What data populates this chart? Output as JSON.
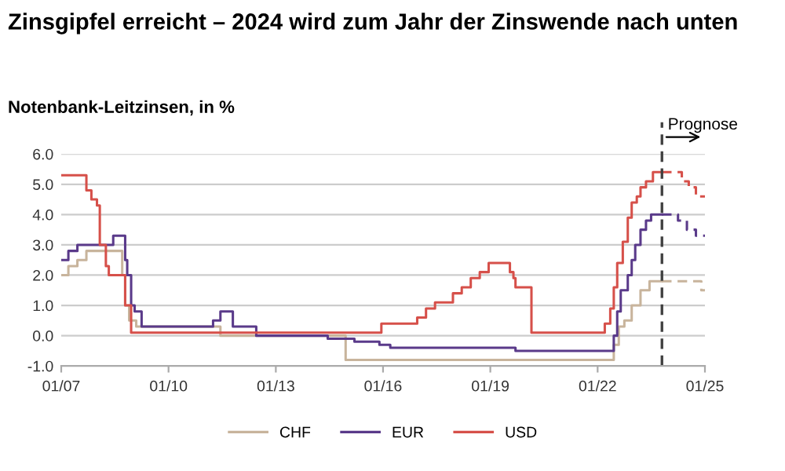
{
  "chart_data": {
    "type": "step",
    "title": "Zinsgipfel erreicht – 2024 wird zum Jahr der Zinswende nach unten",
    "subtitle": "Notenbank-Leitzinsen, in %",
    "series": [
      {
        "name": "CHF",
        "color": "#c8b49c",
        "x": [
          "2007-01-01",
          "2007-03-15",
          "2007-06-15",
          "2007-09-15",
          "2008-09-15",
          "2008-10-15",
          "2008-11-25",
          "2009-02-05",
          "2011-06-15",
          "2014-12-15",
          "2022-06-15",
          "2022-08-05",
          "2022-10-01",
          "2022-12-15",
          "2023-03-15",
          "2023-06-15",
          "2023-10-20"
        ],
        "values": [
          2.0,
          2.3,
          2.5,
          2.8,
          2.0,
          1.0,
          0.5,
          0.3,
          0.0,
          -0.8,
          -0.3,
          0.3,
          0.5,
          1.0,
          1.5,
          1.8,
          1.8
        ]
      },
      {
        "name": "EUR",
        "color": "#5a3a8a",
        "x": [
          "2007-01-01",
          "2007-03-15",
          "2007-06-15",
          "2008-06-15",
          "2008-10-15",
          "2008-11-05",
          "2008-12-15",
          "2009-01-20",
          "2009-04-01",
          "2011-04-01",
          "2011-06-15",
          "2011-10-20",
          "2012-06-15",
          "2014-06-15",
          "2015-03-15",
          "2015-11-25",
          "2016-03-15",
          "2019-09-15",
          "2022-06-15",
          "2022-07-20",
          "2022-08-25",
          "2022-11-05",
          "2022-12-15",
          "2023-01-20",
          "2023-03-15",
          "2023-05-10",
          "2023-07-01",
          "2023-10-20"
        ],
        "values": [
          2.5,
          2.8,
          3.0,
          3.3,
          2.5,
          2.0,
          1.0,
          0.8,
          0.3,
          0.5,
          0.8,
          0.3,
          0.0,
          -0.1,
          -0.2,
          -0.3,
          -0.4,
          -0.5,
          0.0,
          0.8,
          1.5,
          2.0,
          2.5,
          3.0,
          3.5,
          3.8,
          4.0,
          4.0
        ]
      },
      {
        "name": "USD",
        "color": "#d6504a",
        "x": [
          "2007-01-01",
          "2007-09-15",
          "2007-11-05",
          "2008-01-01",
          "2008-01-30",
          "2008-04-01",
          "2008-05-01",
          "2008-10-15",
          "2008-12-15",
          "2015-12-15",
          "2016-12-15",
          "2017-03-15",
          "2017-06-15",
          "2017-12-15",
          "2018-03-15",
          "2018-06-15",
          "2018-09-15",
          "2018-12-15",
          "2019-07-20",
          "2019-08-25",
          "2019-09-15",
          "2020-02-25",
          "2022-03-15",
          "2022-05-10",
          "2022-06-15",
          "2022-07-20",
          "2022-09-15",
          "2022-11-05",
          "2022-12-15",
          "2023-02-05",
          "2023-03-15",
          "2023-05-10",
          "2023-07-20",
          "2023-10-20"
        ],
        "values": [
          5.3,
          4.8,
          4.5,
          4.3,
          3.0,
          2.3,
          2.0,
          1.0,
          0.1,
          0.4,
          0.6,
          0.9,
          1.1,
          1.4,
          1.6,
          1.9,
          2.1,
          2.4,
          2.1,
          1.9,
          1.6,
          0.1,
          0.4,
          0.9,
          1.6,
          2.4,
          3.1,
          3.9,
          4.4,
          4.6,
          4.9,
          5.1,
          5.4,
          5.4
        ]
      },
      {
        "color": "#c8b49c",
        "line_style": "dashed",
        "x": [
          "2023-10-20",
          "2024-11-25",
          "2025-01-01"
        ],
        "values": [
          1.8,
          1.5,
          1.5
        ]
      },
      {
        "color": "#5a3a8a",
        "line_style": "dashed",
        "x": [
          "2023-10-20",
          "2024-04-01",
          "2024-07-01",
          "2024-10-01",
          "2025-01-01"
        ],
        "values": [
          4.0,
          3.8,
          3.5,
          3.3,
          3.3
        ]
      },
      {
        "color": "#d6504a",
        "line_style": "dashed",
        "x": [
          "2023-10-20",
          "2024-05-10",
          "2024-07-20",
          "2024-10-01",
          "2025-01-01"
        ],
        "values": [
          5.4,
          5.1,
          4.9,
          4.6,
          4.6
        ]
      }
    ],
    "xlim": [
      "2007-01-01",
      "2025-01-01"
    ],
    "xticks": [
      {
        "value": "2007-01-01",
        "label": "01/07"
      },
      {
        "value": "2010-01-01",
        "label": "01/10"
      },
      {
        "value": "2013-01-01",
        "label": "01/13"
      },
      {
        "value": "2016-01-01",
        "label": "01/16"
      },
      {
        "value": "2019-01-01",
        "label": "01/19"
      },
      {
        "value": "2022-01-01",
        "label": "01/22"
      },
      {
        "value": "2025-01-01",
        "label": "01/25"
      }
    ],
    "ylim": [
      -1,
      6
    ],
    "yticks": [
      {
        "value": -1,
        "label": "-1.0"
      },
      {
        "value": 0,
        "label": "0.0"
      },
      {
        "value": 1,
        "label": "1.0"
      },
      {
        "value": 2,
        "label": "2.0"
      },
      {
        "value": 3,
        "label": "3.0"
      },
      {
        "value": 4,
        "label": "4.0"
      },
      {
        "value": 5,
        "label": "5.0"
      },
      {
        "value": 6,
        "label": "6.0"
      }
    ],
    "ref_lines": [
      {
        "axis": "x",
        "value": "2023-10-20",
        "label": "Prognose",
        "color": "#404040",
        "line_style": "dashed"
      }
    ],
    "grid": "y",
    "legend": "bottom",
    "line_style": "solid"
  }
}
